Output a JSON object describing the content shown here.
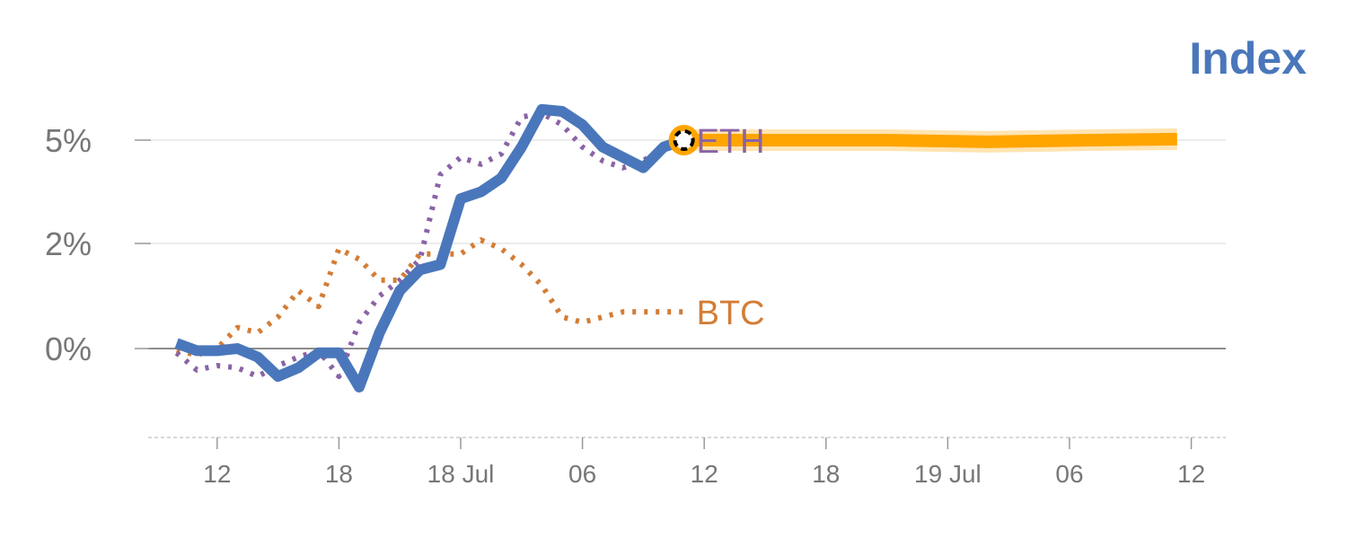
{
  "chart_data": {
    "type": "line",
    "title": "Index",
    "xlabel": "",
    "ylabel": "",
    "ylim": [
      -4.2,
      9.5
    ],
    "y_ticks": [
      {
        "value": 0,
        "label": "0%"
      },
      {
        "value": 2,
        "label": "2%"
      },
      {
        "value": 5,
        "label": "5%"
      }
    ],
    "x_ticks": [
      "12",
      "18",
      "18 Jul",
      "06",
      "12",
      "18",
      "19 Jul",
      "06",
      "12"
    ],
    "x_tick_hours": [
      12,
      18,
      24,
      30,
      36,
      42,
      48,
      54,
      60
    ],
    "x_unit": "hours since 17 Jul 00:00",
    "grid": true,
    "legend": "inline labels at line ends",
    "series": [
      {
        "name": "",
        "color": "#4a77bb",
        "style": "solid",
        "x": [
          10,
          11,
          12,
          13,
          14,
          15,
          16,
          17,
          18,
          19,
          20,
          21,
          22,
          23,
          24,
          25,
          26,
          27,
          28,
          29,
          30,
          31,
          32,
          33,
          34,
          35
        ],
        "y": [
          0.1,
          -0.1,
          -0.1,
          0.0,
          -0.4,
          -1.3,
          -0.9,
          -0.2,
          -0.2,
          -1.8,
          0.3,
          1.1,
          1.5,
          1.6,
          3.3,
          3.5,
          3.9,
          4.8,
          6.6,
          6.5,
          5.8,
          4.8,
          4.5,
          4.2,
          4.8,
          5.0
        ]
      },
      {
        "name": "ETH",
        "color": "#8a63a6",
        "style": "dotted",
        "x": [
          10,
          11,
          12,
          13,
          14,
          15,
          16,
          17,
          18,
          19,
          20,
          21,
          22,
          23,
          24,
          25,
          26,
          27,
          28,
          29,
          30,
          31,
          32,
          33,
          34,
          35
        ],
        "y": [
          -0.2,
          -1.0,
          -0.8,
          -0.9,
          -1.3,
          -0.8,
          -0.4,
          -0.1,
          -1.3,
          0.5,
          1.0,
          1.3,
          1.7,
          4.0,
          4.5,
          4.3,
          4.6,
          6.2,
          6.4,
          5.8,
          4.8,
          4.4,
          4.2,
          4.4,
          4.8,
          5.0
        ]
      },
      {
        "name": "BTC",
        "color": "#d27d36",
        "style": "dotted",
        "x": [
          10,
          11,
          12,
          13,
          14,
          15,
          16,
          17,
          18,
          19,
          20,
          21,
          22,
          23,
          24,
          25,
          26,
          27,
          28,
          29,
          30,
          31,
          32,
          33,
          34,
          35
        ],
        "y": [
          -0.1,
          -0.3,
          0.0,
          0.4,
          0.3,
          0.6,
          1.1,
          0.8,
          1.9,
          1.7,
          1.3,
          1.3,
          1.8,
          1.8,
          1.8,
          2.1,
          1.9,
          1.6,
          1.2,
          0.6,
          0.5,
          0.6,
          0.7,
          0.7,
          0.7,
          0.7
        ]
      },
      {
        "name": "",
        "color": "#ffa500",
        "style": "forecast-band",
        "x": [
          35,
          40,
          45,
          50,
          55,
          59.3
        ],
        "y": [
          5.0,
          5.0,
          5.0,
          4.95,
          5.0,
          5.05
        ]
      }
    ]
  }
}
